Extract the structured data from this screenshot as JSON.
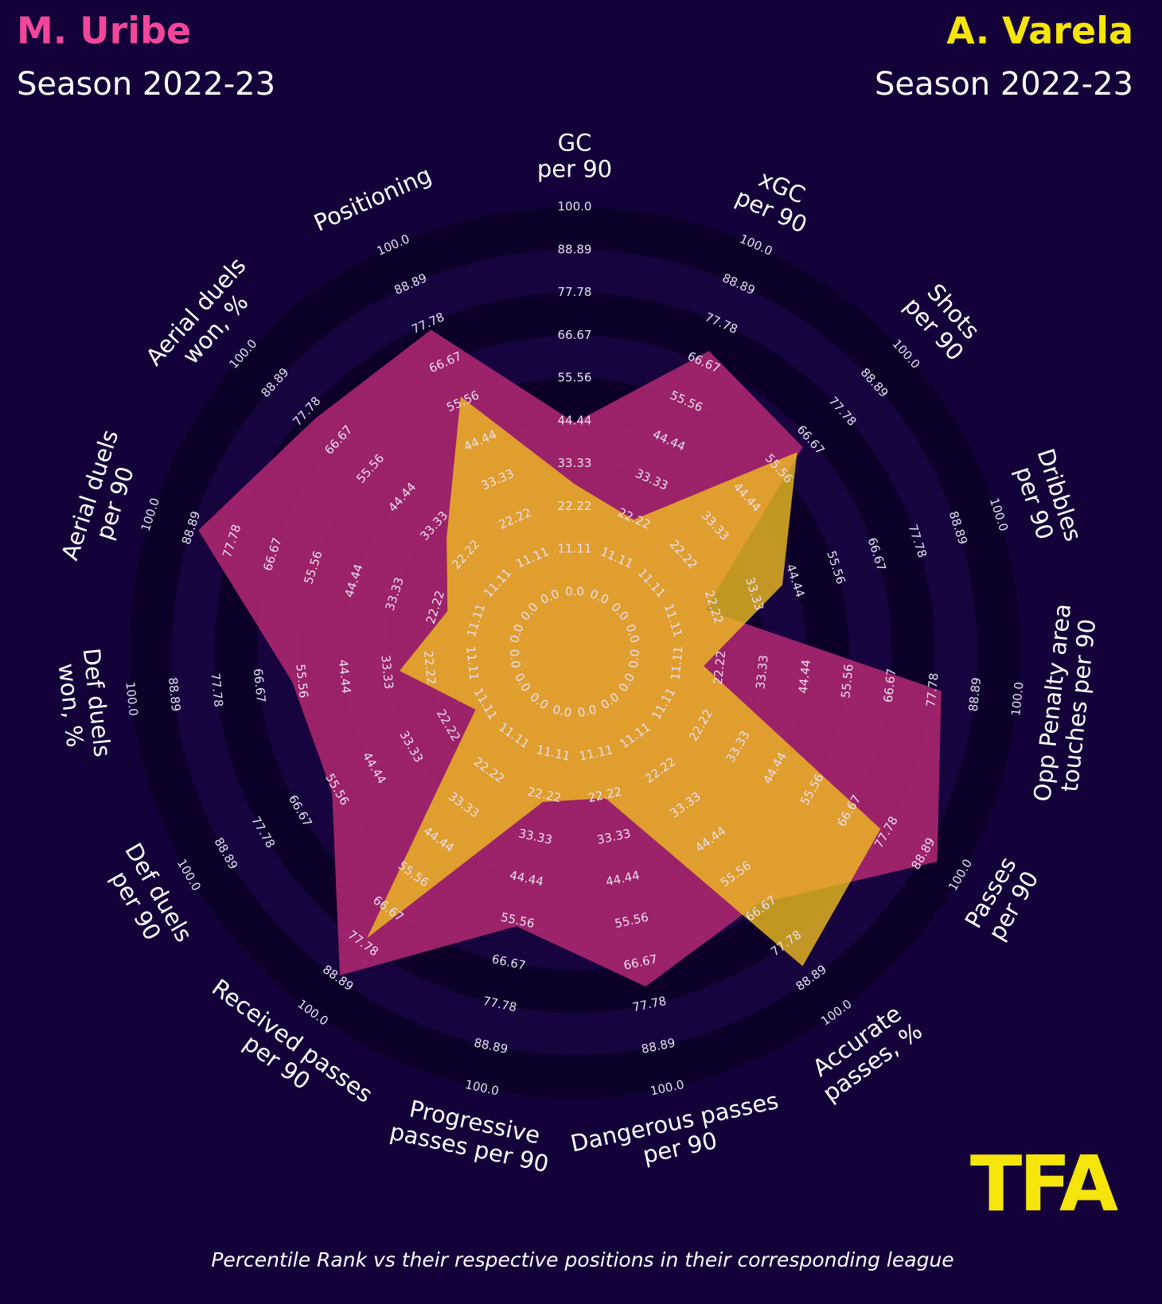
{
  "chart_data": {
    "type": "radar",
    "title_left": "M. Uribe",
    "subtitle_left": "Season 2022-23",
    "title_right": "A. Varela",
    "subtitle_right": "Season 2022-23",
    "logo": "TFA",
    "footnote": "Percentile Rank vs their respective positions in their corresponding league",
    "categories": [
      "GC\nper 90",
      "xGC\nper 90",
      "Shots\nper 90",
      "Dribbles\nper 90",
      "Opp Penalty area\ntouches per 90",
      "Passes\nper 90",
      "Accurate\npasses, %",
      "Dangerous passes\nper 90",
      "Progressive\npasses per 90",
      "Received passes\nper 90",
      "Def duels\nper 90",
      "Def duels\nwon, %",
      "Aerial duels\nper 90",
      "Aerial duels\nwon, %",
      "Positioning"
    ],
    "rlim": [
      0,
      100
    ],
    "rticks": [
      {
        "value": 0,
        "label": "0.0"
      },
      11.11,
      22.22,
      33.33,
      44.44,
      55.56,
      66.67,
      77.78,
      88.89,
      {
        "value": 100,
        "label": "100.0"
      }
    ],
    "series": [
      {
        "name": "M. Uribe",
        "color": "#a3246c",
        "values": [
          44,
          70,
          64,
          20,
          80,
          93,
          65,
          73,
          57,
          88,
          57,
          58,
          87,
          75,
          76
        ]
      },
      {
        "name": "A. Varela",
        "color": "#f3c21f",
        "values": [
          28,
          22,
          62,
          41,
          18,
          76,
          85,
          23,
          24,
          76,
          14,
          30,
          19,
          29,
          57
        ]
      }
    ]
  }
}
